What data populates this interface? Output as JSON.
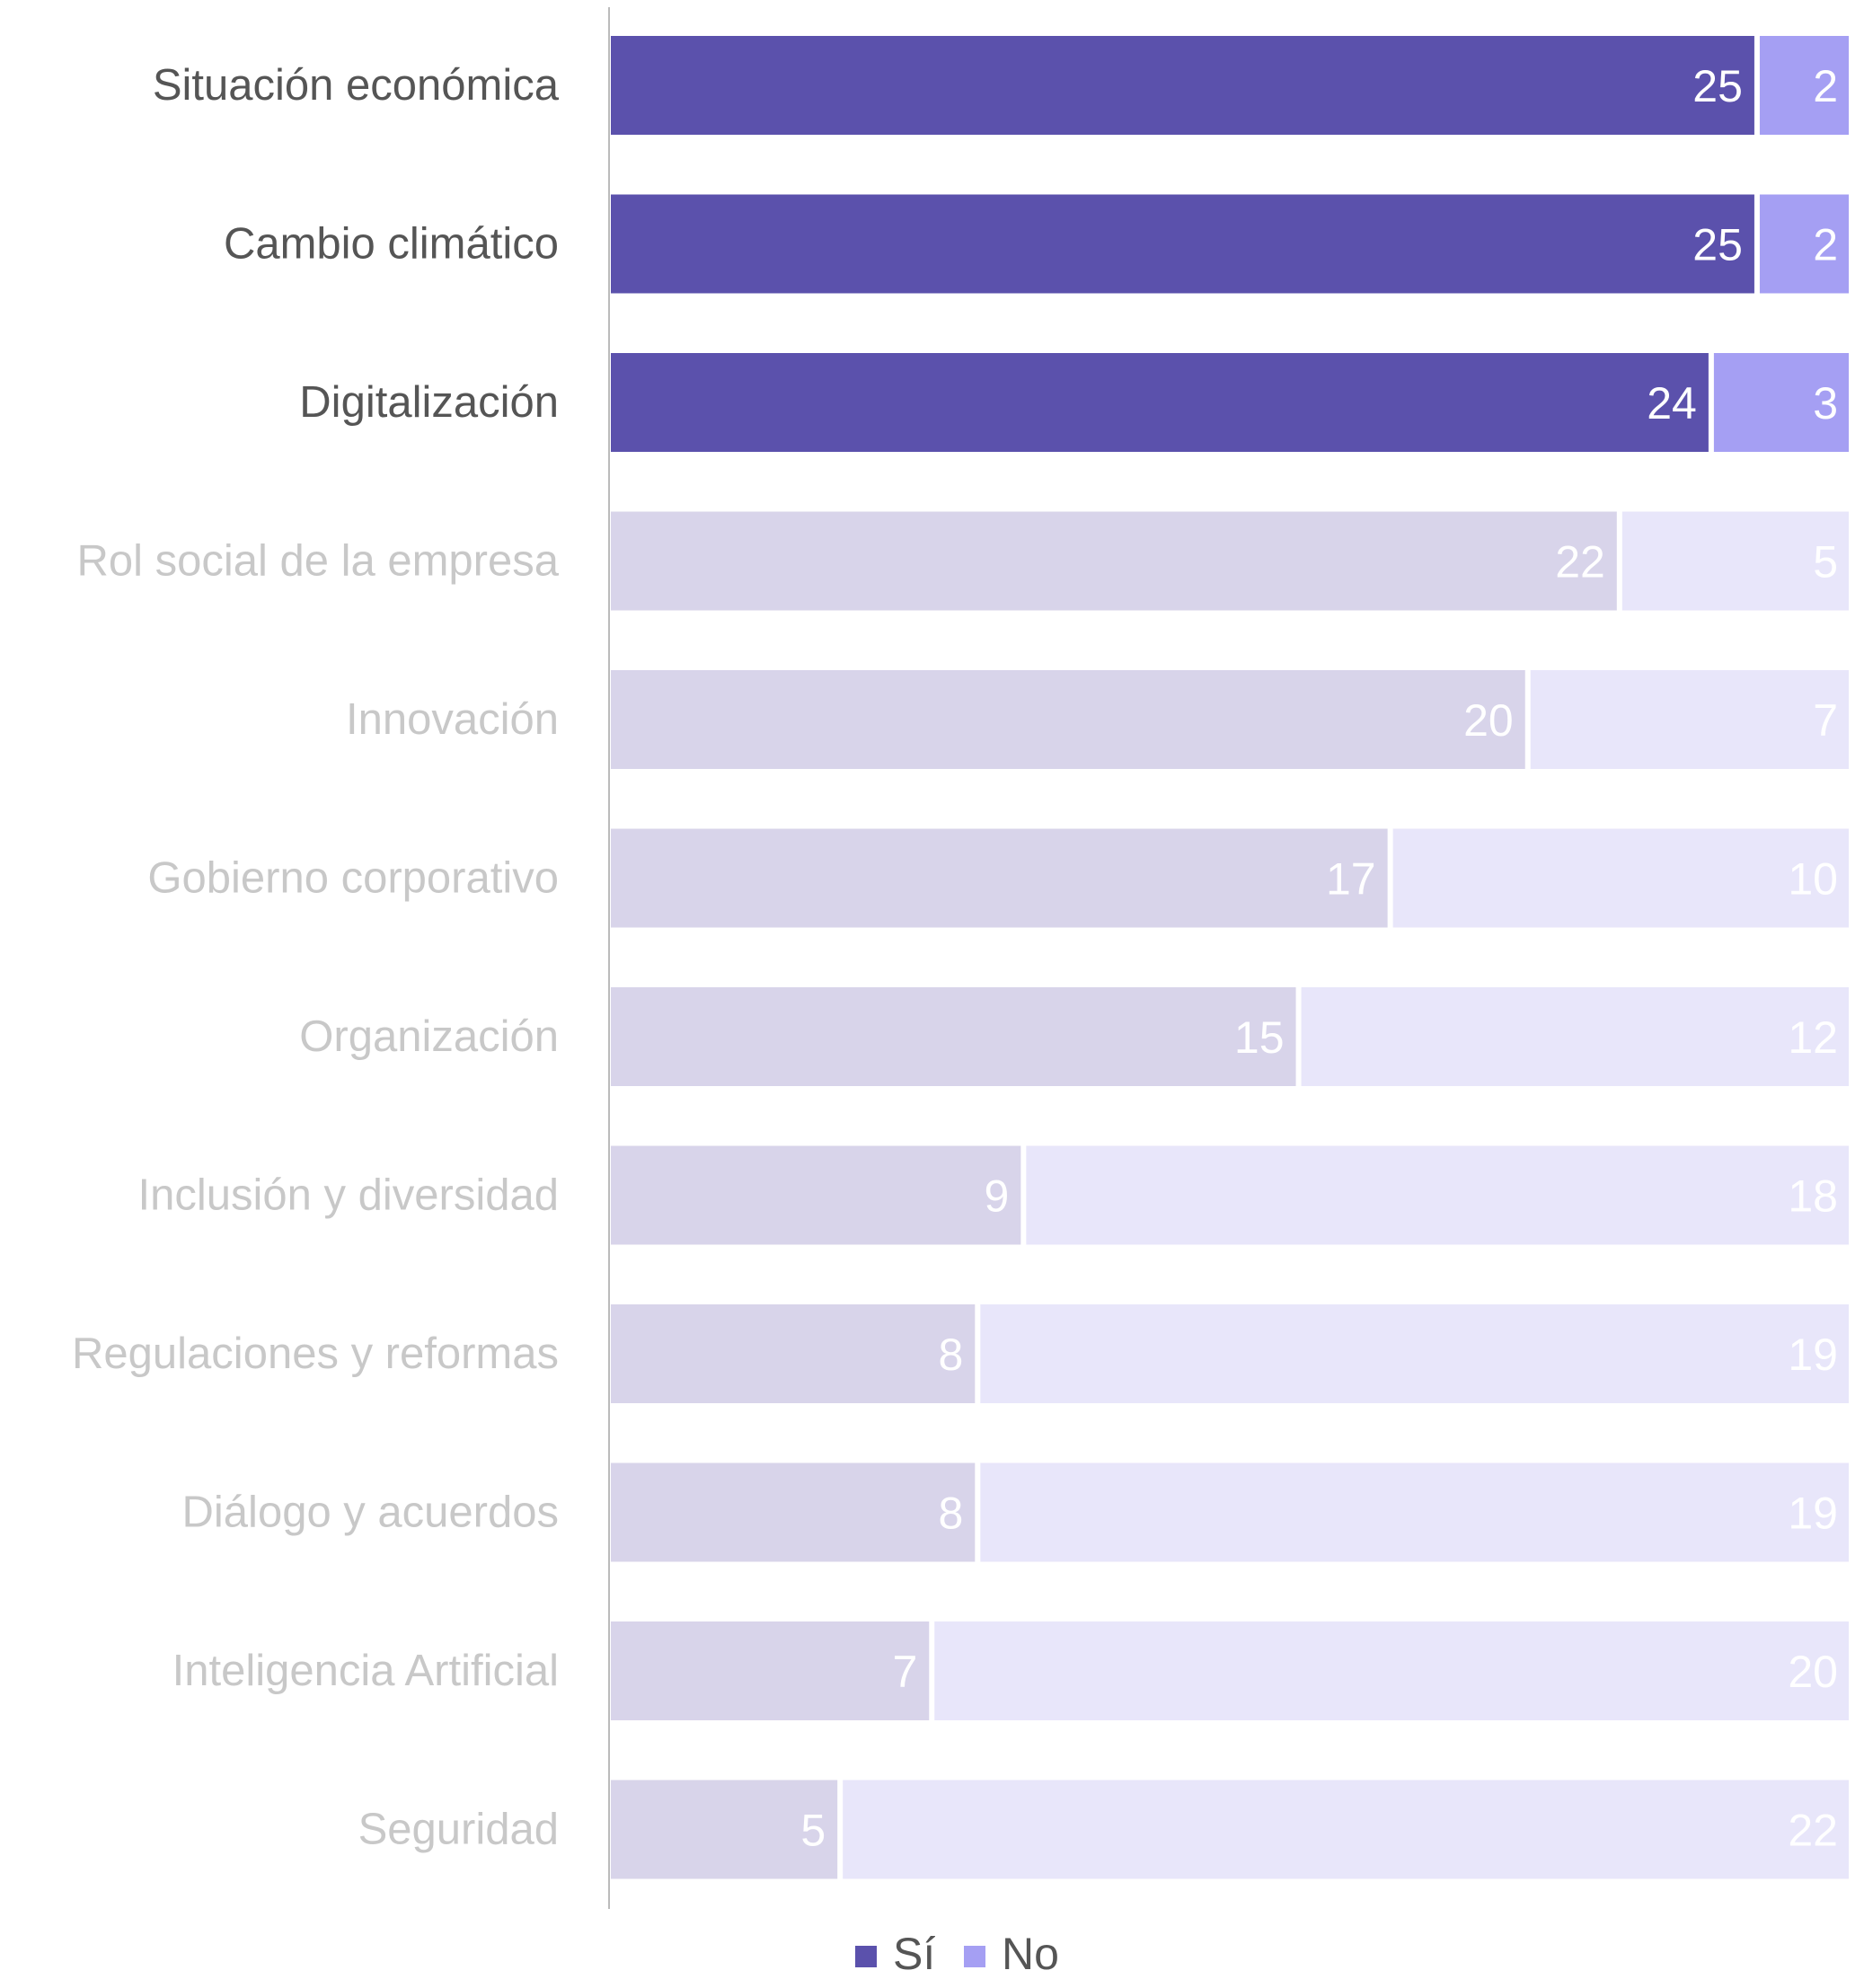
{
  "chart_data": {
    "type": "bar",
    "orientation": "horizontal",
    "stacked": true,
    "categories": [
      "Situación económica",
      "Cambio climático",
      "Digitalización",
      "Rol social de la empresa",
      "Innovación",
      "Gobierno corporativo",
      "Organización",
      "Inclusión y diversidad",
      "Regulaciones y reformas",
      "Diálogo y acuerdos",
      "Inteligencia Artificial",
      "Seguridad"
    ],
    "series": [
      {
        "name": "Sí",
        "values": [
          25,
          25,
          24,
          22,
          20,
          17,
          15,
          9,
          8,
          8,
          7,
          5
        ]
      },
      {
        "name": "No",
        "values": [
          2,
          2,
          3,
          5,
          7,
          10,
          12,
          18,
          19,
          19,
          20,
          22
        ]
      }
    ],
    "highlighted_count": 3,
    "xlim": [
      0,
      27
    ],
    "grid": false,
    "legend": "bottom-center",
    "colors": {
      "si_active": "#5b51ac",
      "no_active": "#a59ff3",
      "si_dim": "#d8d4ea",
      "no_dim": "#e8e6fa",
      "label_active": "#555555",
      "label_dim": "#c8c8c8",
      "axis": "#bbbbbb"
    }
  }
}
